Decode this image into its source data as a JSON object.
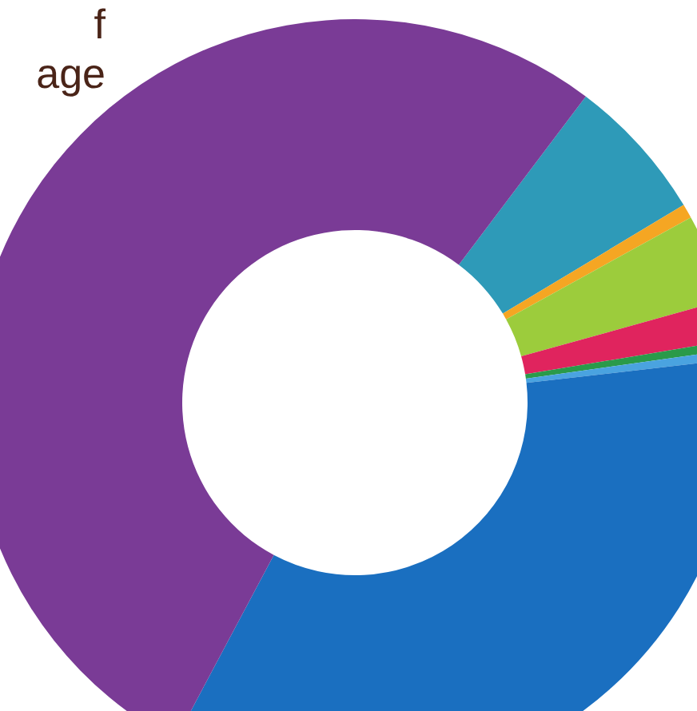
{
  "chart_data": {
    "type": "donut",
    "title": "f\nage",
    "categories": [
      null,
      null,
      null,
      null,
      null,
      null,
      null,
      null
    ],
    "values": [
      6.1,
      0.6,
      3.7,
      1.7,
      0.4,
      0.4,
      34.6,
      52.5
    ],
    "colors": [
      "#2e9ab8",
      "#f5a623",
      "#9ccc3c",
      "#e0245e",
      "#2a9a4a",
      "#4aa3e0",
      "#1a6fc0",
      "#7a3b96"
    ],
    "legend": false
  }
}
